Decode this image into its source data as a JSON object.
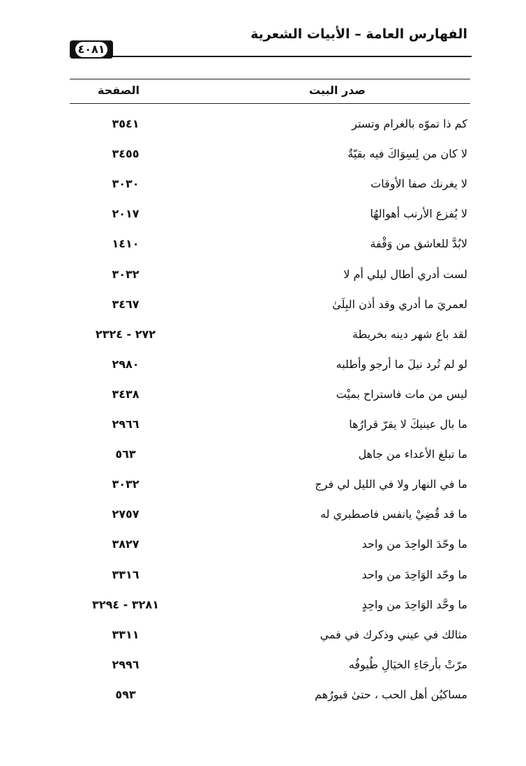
{
  "header": {
    "title": "الفهارس العامة – الأبيات الشعرية",
    "page_number": "٤٠٨١"
  },
  "table": {
    "columns": [
      "صدر البيت",
      "الصفحة"
    ],
    "rows": [
      {
        "verse": "كم ذا تموّه بالغرام وتستر",
        "page": "٣٥٤١"
      },
      {
        "verse": "لا كان من لِسِوَاكَ فيه بقيّةٌ",
        "page": "٣٤٥٥"
      },
      {
        "verse": "لا يغرنك صفا الأوقات",
        "page": "٣٠٣٠"
      },
      {
        "verse": "لا يُفزع الأرنب أهوالهُا",
        "page": "٢٠١٧"
      },
      {
        "verse": "لابُدَّ للعاشق من وَقْفة",
        "page": "١٤١٠"
      },
      {
        "verse": "لست أدري أطال ليلي أم لا",
        "page": "٣٠٣٢"
      },
      {
        "verse": "لعمريَ ما أدري وقد أذن البِلَىٰ",
        "page": "٣٤٦٧"
      },
      {
        "verse": "لقد باع شهر دينه بخريطة",
        "page": "٢٧٢ - ٢٣٢٤"
      },
      {
        "verse": "لو لم تُرد نيلَ ما أرجو وأطلبه",
        "page": "٢٩٨٠"
      },
      {
        "verse": "ليس من مات فاستراح بميْت",
        "page": "٣٤٣٨"
      },
      {
        "verse": "ما بال عينيكَ لا يقرّ قرارُها",
        "page": "٢٩٦٦"
      },
      {
        "verse": "ما تبلغ الأعداء من جاهل",
        "page": "٥٦٣"
      },
      {
        "verse": "ما في النهار ولا في الليل لي فرج",
        "page": "٣٠٣٢"
      },
      {
        "verse": "ما قد قُضِيْ يانفس فاصطبري له",
        "page": "٢٧٥٧"
      },
      {
        "verse": "ما وحّدَ الواحِدَ من واحد",
        "page": "٣٨٢٧"
      },
      {
        "verse": "ما وحّد الوَاحِدَ من واحد",
        "page": "٣٣١٦"
      },
      {
        "verse": "ما وحَّد الوَاحِدَ من واحِدٍ",
        "page": "٣٢٨١ - ٣٢٩٤"
      },
      {
        "verse": "مثالك في عيني وذكرك في فمي",
        "page": "٣٣١١"
      },
      {
        "verse": "مرّتْ بأرجَاءِ الخيَالِ طُيوفُه",
        "page": "٢٩٩٦"
      },
      {
        "verse": "مساكيُن أهل الحب ، حتىٰ قبورُهم",
        "page": "٥٩٣"
      }
    ]
  }
}
